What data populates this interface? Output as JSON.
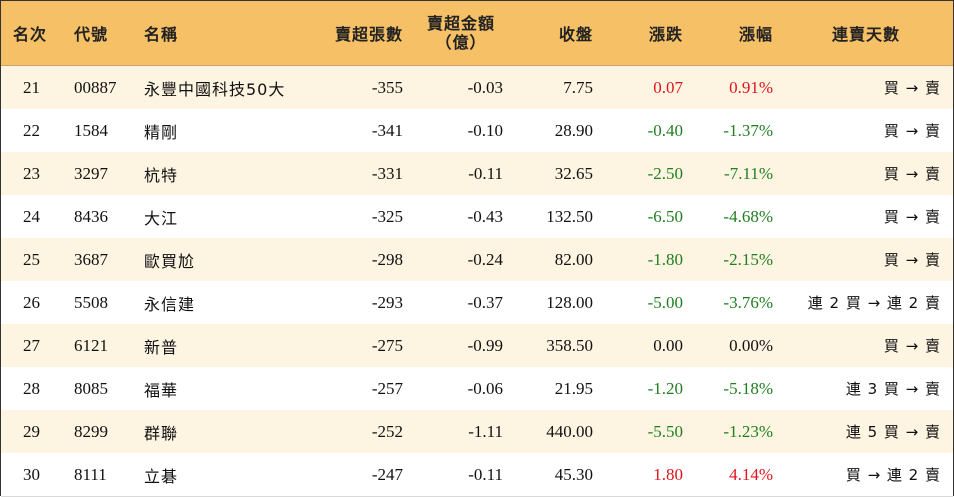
{
  "header": {
    "rank": "名次",
    "code": "代號",
    "name": "名稱",
    "net_sell_lots": "賣超張數",
    "net_sell_amount_line1": "賣超金額",
    "net_sell_amount_line2": "（億）",
    "close": "收盤",
    "change": "漲跌",
    "change_pct": "漲幅",
    "streak": "連賣天數"
  },
  "colors": {
    "header_bg": "#f6c067",
    "stripe_bg": "#fdf4e1",
    "up": "#e0141e",
    "down": "#1f7f1f"
  },
  "rows": [
    {
      "rank": "21",
      "code": "00887",
      "name": "永豐中國科技50大",
      "lots": "-355",
      "amount": "-0.03",
      "close": "7.75",
      "change": "0.07",
      "pct": "0.91%",
      "streak": "買 → 賣",
      "dir": "up"
    },
    {
      "rank": "22",
      "code": "1584",
      "name": "精剛",
      "lots": "-341",
      "amount": "-0.10",
      "close": "28.90",
      "change": "-0.40",
      "pct": "-1.37%",
      "streak": "買 → 賣",
      "dir": "down"
    },
    {
      "rank": "23",
      "code": "3297",
      "name": "杭特",
      "lots": "-331",
      "amount": "-0.11",
      "close": "32.65",
      "change": "-2.50",
      "pct": "-7.11%",
      "streak": "買 → 賣",
      "dir": "down"
    },
    {
      "rank": "24",
      "code": "8436",
      "name": "大江",
      "lots": "-325",
      "amount": "-0.43",
      "close": "132.50",
      "change": "-6.50",
      "pct": "-4.68%",
      "streak": "買 → 賣",
      "dir": "down"
    },
    {
      "rank": "25",
      "code": "3687",
      "name": "歐買尬",
      "lots": "-298",
      "amount": "-0.24",
      "close": "82.00",
      "change": "-1.80",
      "pct": "-2.15%",
      "streak": "買 → 賣",
      "dir": "down"
    },
    {
      "rank": "26",
      "code": "5508",
      "name": "永信建",
      "lots": "-293",
      "amount": "-0.37",
      "close": "128.00",
      "change": "-5.00",
      "pct": "-3.76%",
      "streak": "連 2 買 → 連 2 賣",
      "dir": "down"
    },
    {
      "rank": "27",
      "code": "6121",
      "name": "新普",
      "lots": "-275",
      "amount": "-0.99",
      "close": "358.50",
      "change": "0.00",
      "pct": "0.00%",
      "streak": "買 → 賣",
      "dir": "flat"
    },
    {
      "rank": "28",
      "code": "8085",
      "name": "福華",
      "lots": "-257",
      "amount": "-0.06",
      "close": "21.95",
      "change": "-1.20",
      "pct": "-5.18%",
      "streak": "連 3 買 → 賣",
      "dir": "down"
    },
    {
      "rank": "29",
      "code": "8299",
      "name": "群聯",
      "lots": "-252",
      "amount": "-1.11",
      "close": "440.00",
      "change": "-5.50",
      "pct": "-1.23%",
      "streak": "連 5 買 → 賣",
      "dir": "down"
    },
    {
      "rank": "30",
      "code": "8111",
      "name": "立碁",
      "lots": "-247",
      "amount": "-0.11",
      "close": "45.30",
      "change": "1.80",
      "pct": "4.14%",
      "streak": "買 → 連 2 賣",
      "dir": "up"
    }
  ]
}
